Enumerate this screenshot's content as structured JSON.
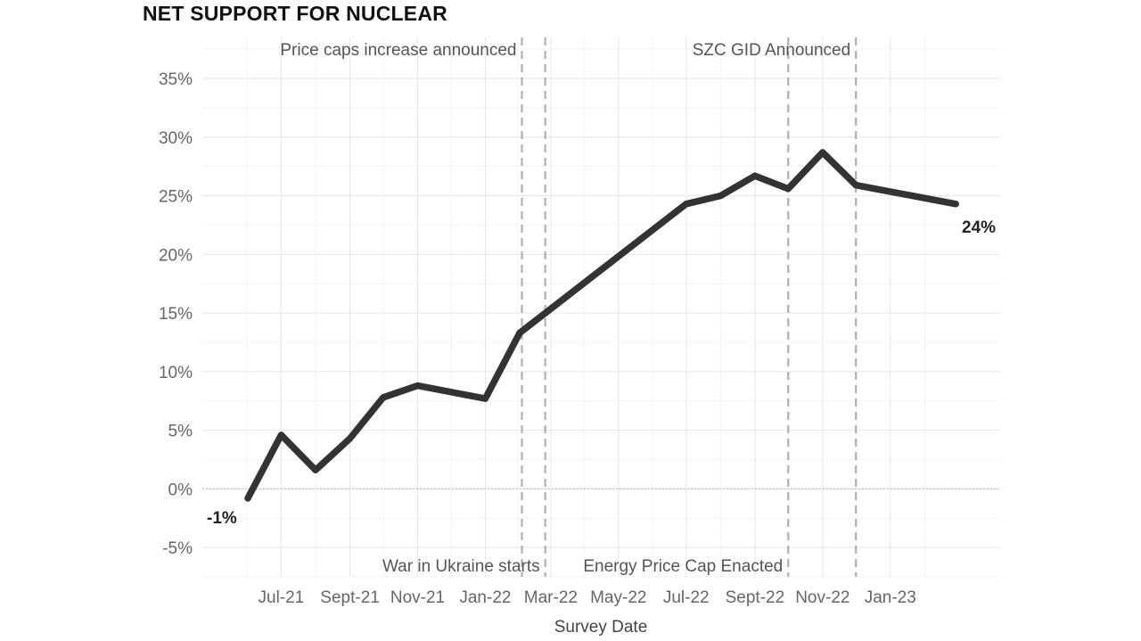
{
  "chart_data": {
    "type": "line",
    "title": "NET SUPPORT FOR NUCLEAR",
    "xlabel": "Survey Date",
    "ylabel": "",
    "x_tick_labels": [
      {
        "date": "2021-07",
        "label": "Jul-21"
      },
      {
        "date": "2021-09",
        "label": "Sept-21"
      },
      {
        "date": "2021-11",
        "label": "Nov-21"
      },
      {
        "date": "2022-01",
        "label": "Jan-22"
      },
      {
        "date": "2022-03",
        "label": "Mar-22"
      },
      {
        "date": "2022-05",
        "label": "May-22"
      },
      {
        "date": "2022-07",
        "label": "Jul-22"
      },
      {
        "date": "2022-09",
        "label": "Sept-22"
      },
      {
        "date": "2022-11",
        "label": "Nov-22"
      },
      {
        "date": "2023-01",
        "label": "Jan-23"
      }
    ],
    "y_ticks": [
      -5,
      0,
      5,
      10,
      15,
      20,
      25,
      30,
      35
    ],
    "y_tick_labels": [
      "-5%",
      "0%",
      "5%",
      "10%",
      "15%",
      "20%",
      "25%",
      "30%",
      "35%"
    ],
    "ylim": [
      -7.5,
      38.5
    ],
    "xlim": [
      "2021-04-21",
      "2023-04-10"
    ],
    "grid": true,
    "zero_line": true,
    "series": [
      {
        "color": "#333333",
        "points": [
          {
            "x": "2021-06-01",
            "y": -0.8
          },
          {
            "x": "2021-07-01",
            "y": 4.6
          },
          {
            "x": "2021-08-01",
            "y": 1.6
          },
          {
            "x": "2021-09-01",
            "y": 4.3
          },
          {
            "x": "2021-10-01",
            "y": 7.8
          },
          {
            "x": "2021-11-01",
            "y": 8.8
          },
          {
            "x": "2022-01-01",
            "y": 7.7
          },
          {
            "x": "2022-02-01",
            "y": 13.3
          },
          {
            "x": "2022-07-01",
            "y": 24.3
          },
          {
            "x": "2022-08-01",
            "y": 25.0
          },
          {
            "x": "2022-09-01",
            "y": 26.7
          },
          {
            "x": "2022-10-01",
            "y": 25.6
          },
          {
            "x": "2022-11-01",
            "y": 28.7
          },
          {
            "x": "2022-12-01",
            "y": 25.9
          },
          {
            "x": "2023-03-01",
            "y": 24.3
          }
        ]
      }
    ],
    "annotations": [
      {
        "name": "price-caps-increase",
        "x": "2022-02-03",
        "text": "Price caps increase announced",
        "position": "top",
        "align": "end"
      },
      {
        "name": "war-in-ukraine",
        "x": "2022-02-24",
        "text": "War in Ukraine starts",
        "position": "bottom",
        "align": "end"
      },
      {
        "name": "szc-gid",
        "x": "2022-12-01",
        "text": "SZC GID Announced",
        "position": "top",
        "align": "end"
      },
      {
        "name": "energy-price-cap",
        "x": "2022-10-01",
        "text": "Energy Price Cap Enacted",
        "position": "bottom",
        "align": "end"
      }
    ],
    "data_labels": [
      {
        "name": "start-label",
        "x": "2021-06-01",
        "text": "-1%"
      },
      {
        "name": "end-label",
        "x": "2023-03-01",
        "text": "24%"
      }
    ]
  }
}
